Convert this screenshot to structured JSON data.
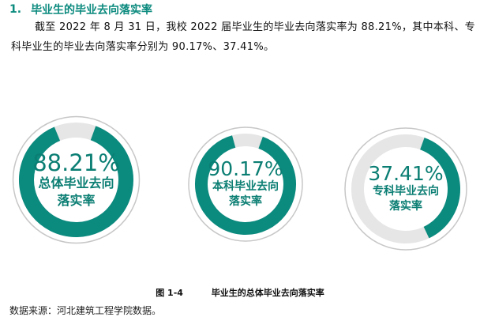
{
  "heading": {
    "number": "1.",
    "title": "毕业生的毕业去向落实率"
  },
  "paragraph": "截至 2022 年 8 月 31 日，我校 2022 届毕业生的毕业去向落实率为 88.21%，其中本科、专科毕业生的毕业去向落实率分别为 90.17%、37.41%。",
  "rings": [
    {
      "value": 88.21,
      "percent_text": "88.21%",
      "label_line1": "总体毕业去向",
      "label_line2": "落实率"
    },
    {
      "value": 90.17,
      "percent_text": "90.17%",
      "label_line1": "本科毕业去向",
      "label_line2": "落实率"
    },
    {
      "value": 37.41,
      "percent_text": "37.41%",
      "label_line1": "专科毕业去向",
      "label_line2": "落实率"
    }
  ],
  "colors": {
    "accent": "#0b8a7e",
    "track": "#e6e6e6",
    "outline": "#c7c7c7"
  },
  "caption": {
    "figure_no": "图 1-4",
    "title": "毕业生的总体毕业去向落实率"
  },
  "source": "数据来源：河北建筑工程学院数据。"
}
